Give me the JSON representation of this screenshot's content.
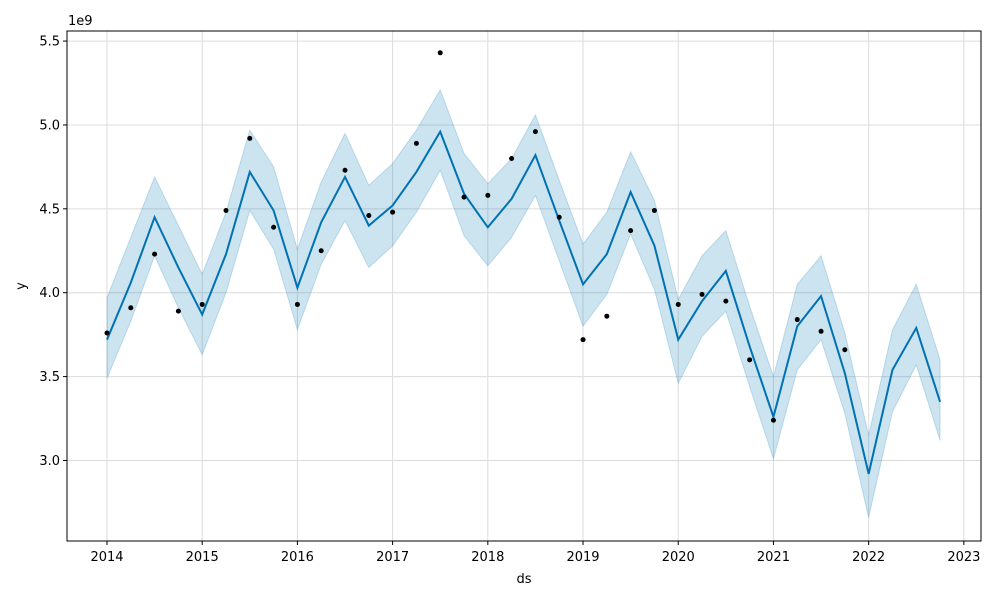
{
  "chart_data": {
    "type": "line",
    "title": "",
    "xlabel": "ds",
    "ylabel": "y",
    "y_offset_label": "1e9",
    "grid": true,
    "xlim": [
      2013.58,
      2023.18
    ],
    "ylim": [
      2.52,
      5.56
    ],
    "x_ticks": [
      2014,
      2015,
      2016,
      2017,
      2018,
      2019,
      2020,
      2021,
      2022,
      2023
    ],
    "x_tick_labels": [
      "2014",
      "2015",
      "2016",
      "2017",
      "2018",
      "2019",
      "2020",
      "2021",
      "2022",
      "2023"
    ],
    "y_ticks": [
      3.0,
      3.5,
      4.0,
      4.5,
      5.0,
      5.5
    ],
    "y_tick_labels": [
      "3.0",
      "3.5",
      "4.0",
      "4.5",
      "5.0",
      "5.5"
    ],
    "colors": {
      "forecast": "#0072B2",
      "interval": "#0072B2",
      "points": "#000000",
      "grid": "#dcdcdc"
    },
    "series": [
      {
        "kind": "forecast",
        "x": [
          2014.0,
          2014.25,
          2014.5,
          2014.75,
          2015.0,
          2015.25,
          2015.5,
          2015.75,
          2016.0,
          2016.25,
          2016.5,
          2016.75,
          2017.0,
          2017.25,
          2017.5,
          2017.75,
          2018.0,
          2018.25,
          2018.5,
          2018.75,
          2019.0,
          2019.25,
          2019.5,
          2019.75,
          2020.0,
          2020.25,
          2020.5,
          2020.75,
          2021.0,
          2021.25,
          2021.5,
          2021.75,
          2022.0,
          2022.25,
          2022.5,
          2022.75
        ],
        "yhat": [
          3.72,
          4.06,
          4.45,
          4.15,
          3.87,
          4.23,
          4.72,
          4.49,
          4.03,
          4.42,
          4.69,
          4.4,
          4.52,
          4.72,
          4.96,
          4.59,
          4.39,
          4.56,
          4.82,
          4.43,
          4.05,
          4.23,
          4.6,
          4.28,
          3.72,
          3.95,
          4.13,
          3.68,
          3.26,
          3.8,
          3.98,
          3.52,
          2.92,
          3.54,
          3.79,
          3.35
        ],
        "lower": [
          3.49,
          3.83,
          4.22,
          3.91,
          3.63,
          4.0,
          4.49,
          4.26,
          3.78,
          4.17,
          4.43,
          4.15,
          4.28,
          4.48,
          4.73,
          4.34,
          4.16,
          4.33,
          4.58,
          4.19,
          3.8,
          3.99,
          4.35,
          4.02,
          3.46,
          3.74,
          3.89,
          3.44,
          3.01,
          3.54,
          3.72,
          3.28,
          2.66,
          3.29,
          3.57,
          3.12
        ],
        "upper": [
          3.97,
          4.33,
          4.69,
          4.4,
          4.11,
          4.48,
          4.97,
          4.75,
          4.26,
          4.66,
          4.95,
          4.64,
          4.77,
          4.97,
          5.21,
          4.83,
          4.65,
          4.8,
          5.06,
          4.67,
          4.29,
          4.48,
          4.84,
          4.55,
          3.96,
          4.22,
          4.37,
          3.92,
          3.5,
          4.05,
          4.22,
          3.76,
          3.15,
          3.78,
          4.05,
          3.6
        ]
      },
      {
        "kind": "observed",
        "x": [
          2014.0,
          2014.25,
          2014.5,
          2014.75,
          2015.0,
          2015.25,
          2015.5,
          2015.75,
          2016.0,
          2016.25,
          2016.5,
          2016.75,
          2017.0,
          2017.25,
          2017.5,
          2017.75,
          2018.0,
          2018.25,
          2018.5,
          2018.75,
          2019.0,
          2019.25,
          2019.5,
          2019.75,
          2020.0,
          2020.25,
          2020.5,
          2020.75,
          2021.0,
          2021.25,
          2021.5,
          2021.75
        ],
        "y": [
          3.76,
          3.91,
          4.23,
          3.89,
          3.93,
          4.49,
          4.92,
          4.39,
          3.93,
          4.25,
          4.73,
          4.46,
          4.48,
          4.89,
          5.43,
          4.57,
          4.58,
          4.8,
          4.96,
          4.45,
          3.72,
          3.86,
          4.37,
          4.49,
          3.93,
          3.99,
          3.95,
          3.6,
          3.24,
          3.84,
          3.77,
          3.66
        ]
      }
    ]
  }
}
